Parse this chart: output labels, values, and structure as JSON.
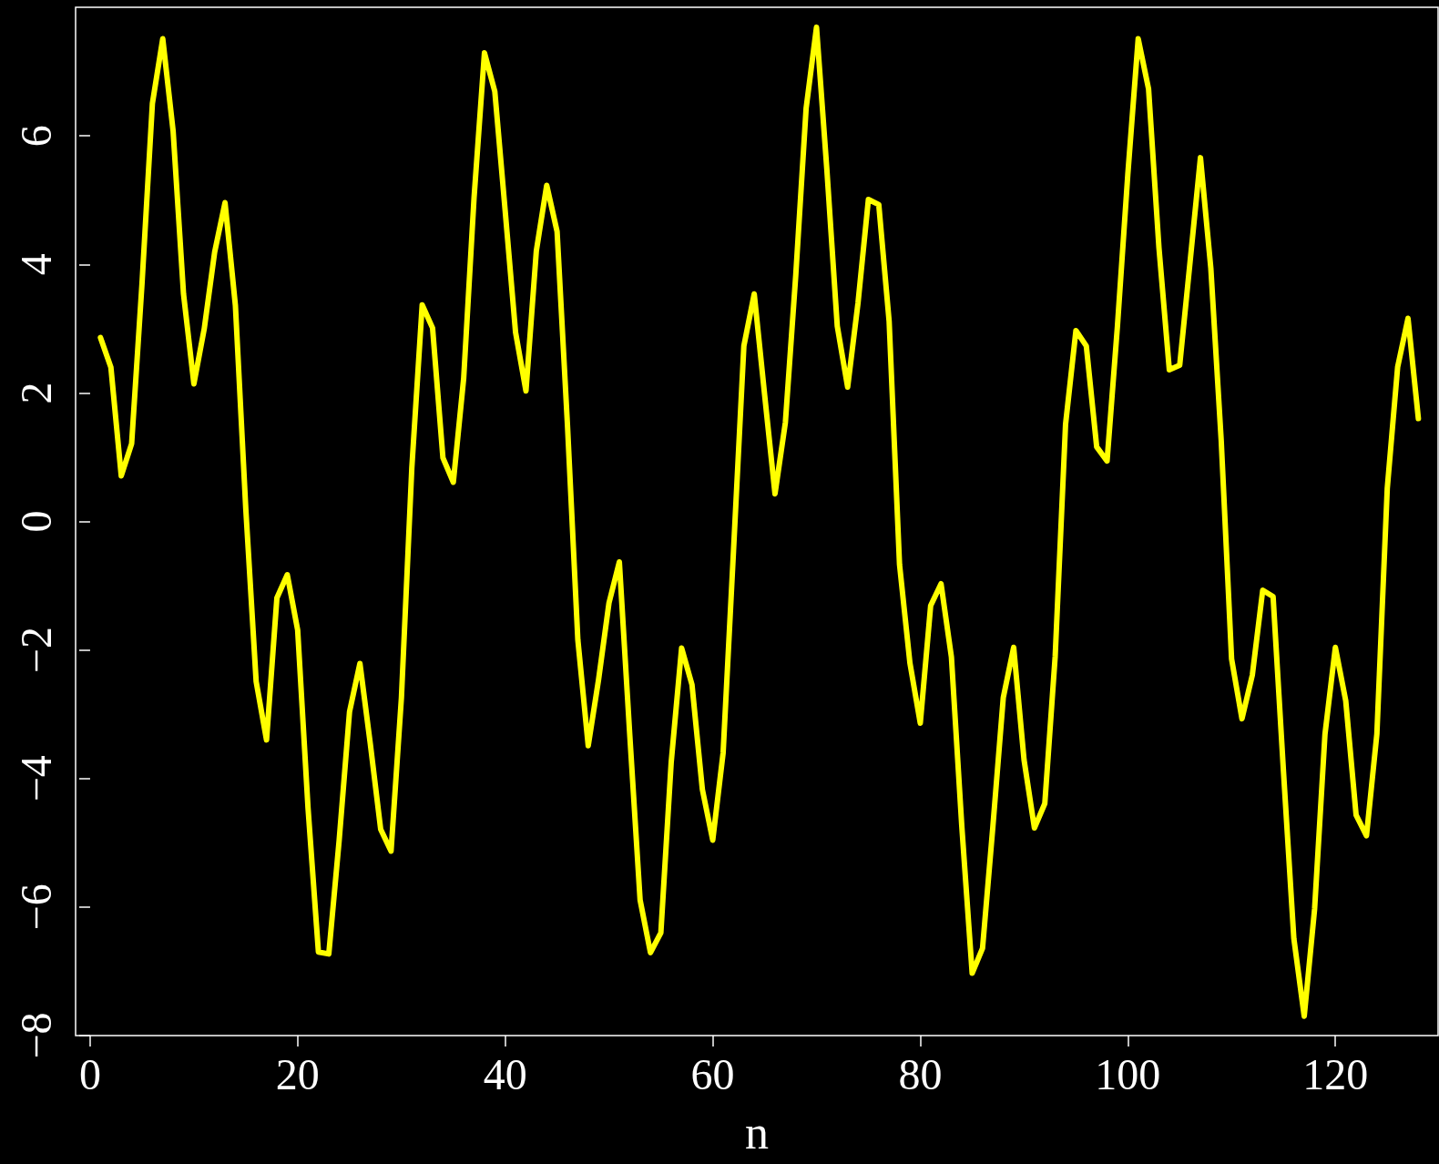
{
  "chart_data": {
    "type": "line",
    "xlabel": "n",
    "color": "#ffff00",
    "marker": "none",
    "line_style": "solid",
    "grid": false,
    "xlim": [
      -1.4,
      129.9
    ],
    "ylim": [
      -8.0,
      8.0
    ],
    "xticks": [
      0,
      20,
      40,
      60,
      80,
      100,
      120
    ],
    "yticks": [
      -8,
      -6,
      -4,
      -2,
      0,
      2,
      4,
      6
    ],
    "x": [
      1,
      2,
      3,
      4,
      5,
      6,
      7,
      8,
      9,
      10,
      11,
      12,
      13,
      14,
      15,
      16,
      17,
      18,
      19,
      20,
      21,
      22,
      23,
      24,
      25,
      26,
      27,
      28,
      29,
      30,
      31,
      32,
      33,
      34,
      35,
      36,
      37,
      38,
      39,
      40,
      41,
      42,
      43,
      44,
      45,
      46,
      47,
      48,
      49,
      50,
      51,
      52,
      53,
      54,
      55,
      56,
      57,
      58,
      59,
      60,
      61,
      62,
      63,
      64,
      65,
      66,
      67,
      68,
      69,
      70,
      71,
      72,
      73,
      74,
      75,
      76,
      77,
      78,
      79,
      80,
      81,
      82,
      83,
      84,
      85,
      86,
      87,
      88,
      89,
      90,
      91,
      92,
      93,
      94,
      95,
      96,
      97,
      98,
      99,
      100,
      101,
      102,
      103,
      104,
      105,
      106,
      107,
      108,
      109,
      110,
      111,
      112,
      113,
      114,
      115,
      116,
      117,
      118,
      119,
      120,
      121,
      122,
      123,
      124,
      125,
      126,
      127,
      128
    ],
    "values": [
      2.86,
      2.4,
      0.71,
      1.21,
      3.7,
      6.5,
      7.51,
      6.07,
      3.54,
      2.14,
      3.0,
      4.19,
      4.96,
      3.36,
      0.2,
      -2.49,
      -3.4,
      -1.19,
      -0.83,
      -1.69,
      -4.46,
      -6.7,
      -6.73,
      -4.96,
      -2.96,
      -2.21,
      -3.46,
      -4.79,
      -5.13,
      -2.74,
      0.83,
      3.37,
      3.01,
      0.99,
      0.61,
      2.23,
      5.04,
      7.29,
      6.69,
      4.83,
      2.94,
      2.03,
      4.21,
      5.23,
      4.51,
      1.5,
      -1.84,
      -3.49,
      -2.46,
      -1.27,
      -0.63,
      -3.31,
      -5.89,
      -6.71,
      -6.4,
      -3.74,
      -1.97,
      -2.54,
      -4.17,
      -4.96,
      -3.6,
      -0.46,
      2.73,
      3.54,
      1.97,
      0.43,
      1.54,
      3.83,
      6.43,
      7.69,
      5.47,
      3.04,
      2.09,
      3.4,
      5.01,
      4.93,
      3.11,
      -0.67,
      -2.2,
      -3.14,
      -1.31,
      -0.97,
      -2.11,
      -4.74,
      -7.03,
      -6.64,
      -4.74,
      -2.74,
      -1.96,
      -3.71,
      -4.77,
      -4.39,
      -2.1,
      1.51,
      2.97,
      2.73,
      1.16,
      0.94,
      3.04,
      5.4,
      7.51,
      6.73,
      4.26,
      2.36,
      2.43,
      4.04,
      5.66,
      3.94,
      1.26,
      -2.14,
      -3.07,
      -2.39,
      -1.07,
      -1.17,
      -3.89,
      -6.49,
      -7.7,
      -6.03,
      -3.31,
      -1.96,
      -2.79,
      -4.57,
      -4.89,
      -3.31,
      0.51,
      2.4,
      3.16,
      1.6
    ]
  }
}
